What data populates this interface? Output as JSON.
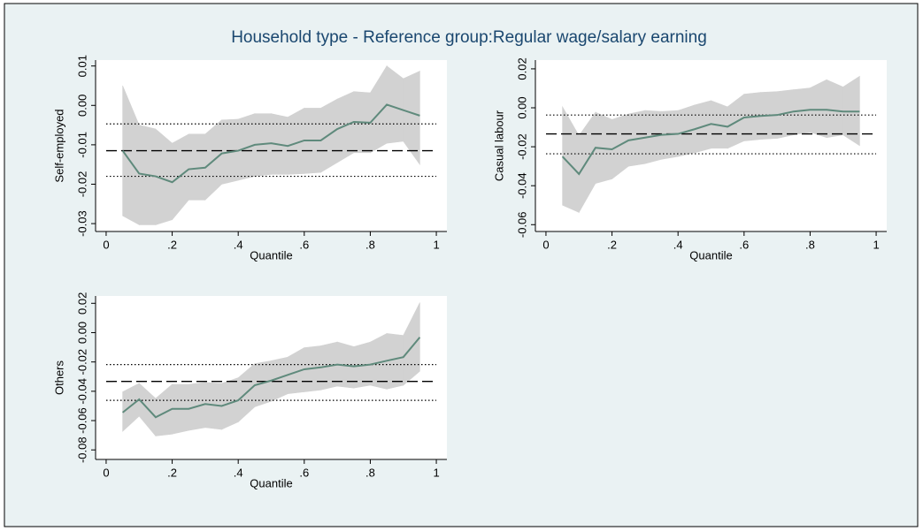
{
  "title": "Household type - Reference group:Regular wage/salary earning",
  "chart_data": [
    {
      "type": "line",
      "xlabel": "Quantile",
      "ylabel": "Self-employed",
      "x": [
        0.05,
        0.1,
        0.15,
        0.2,
        0.25,
        0.3,
        0.35,
        0.4,
        0.45,
        0.5,
        0.55,
        0.6,
        0.65,
        0.7,
        0.75,
        0.8,
        0.85,
        0.9,
        0.95
      ],
      "series": [
        {
          "color": "#5f8a7c",
          "values": [
            -0.0115,
            -0.0173,
            -0.018,
            -0.0195,
            -0.0162,
            -0.0158,
            -0.0122,
            -0.0115,
            -0.01,
            -0.0096,
            -0.0103,
            -0.0089,
            -0.0089,
            -0.006,
            -0.0042,
            -0.0044,
            0.0002,
            -0.0012,
            -0.0026
          ]
        }
      ],
      "band": {
        "color": "#d2d2d2",
        "upper": [
          0.005,
          -0.005,
          -0.006,
          -0.0096,
          -0.0073,
          -0.0073,
          -0.0037,
          -0.0035,
          -0.0021,
          -0.0021,
          -0.003,
          -0.0007,
          -0.0007,
          0.0016,
          0.0035,
          0.0032,
          0.01,
          0.0068,
          0.0087
        ],
        "lower": [
          -0.028,
          -0.0303,
          -0.0303,
          -0.029,
          -0.024,
          -0.024,
          -0.02,
          -0.019,
          -0.018,
          -0.0175,
          -0.0175,
          -0.0173,
          -0.017,
          -0.0145,
          -0.012,
          -0.012,
          -0.0096,
          -0.0091,
          -0.015
        ]
      },
      "ols": {
        "estimate": -0.0115,
        "ci": [
          -0.018,
          -0.0047
        ]
      },
      "xlim": [
        -0.032,
        1.032
      ],
      "ylim": [
        -0.032,
        0.0115
      ],
      "xticks": [
        0,
        {
          "value": 0.2,
          "label": ".2"
        },
        {
          "value": 0.4,
          "label": ".4"
        },
        {
          "value": 0.6,
          "label": ".6"
        },
        {
          "value": 0.8,
          "label": ".8"
        },
        1
      ],
      "yticks": [
        {
          "value": -0.03,
          "label": "-0.03"
        },
        {
          "value": -0.02,
          "label": "-0.02"
        },
        {
          "value": -0.01,
          "label": "-0.01"
        },
        {
          "value": 0,
          "label": "0.00"
        },
        {
          "value": 0.01,
          "label": "0.01"
        }
      ]
    },
    {
      "type": "line",
      "xlabel": "Quantile",
      "ylabel": "Casual labour",
      "x": [
        0.05,
        0.1,
        0.15,
        0.2,
        0.25,
        0.3,
        0.35,
        0.4,
        0.45,
        0.5,
        0.55,
        0.6,
        0.65,
        0.7,
        0.75,
        0.8,
        0.85,
        0.9,
        0.95
      ],
      "series": [
        {
          "color": "#5f8a7c",
          "values": [
            -0.025,
            -0.034,
            -0.0205,
            -0.0213,
            -0.0167,
            -0.0153,
            -0.0139,
            -0.0134,
            -0.011,
            -0.0083,
            -0.0097,
            -0.005,
            -0.0042,
            -0.0037,
            -0.0019,
            -0.001,
            -0.001,
            -0.0019,
            -0.0019
          ]
        }
      ],
      "band": {
        "color": "#d2d2d2",
        "upper": [
          0.0005,
          -0.0143,
          -0.0023,
          -0.006,
          -0.0032,
          -0.0014,
          -0.0019,
          -0.0014,
          0.0014,
          0.0037,
          0.0005,
          0.007,
          0.0079,
          0.0083,
          0.0093,
          0.0102,
          0.0144,
          0.0107,
          0.0162
        ],
        "lower": [
          -0.05,
          -0.0537,
          -0.0388,
          -0.0365,
          -0.03,
          -0.0287,
          -0.0264,
          -0.025,
          -0.0231,
          -0.0208,
          -0.0208,
          -0.017,
          -0.0162,
          -0.0157,
          -0.0139,
          -0.0125,
          -0.0153,
          -0.0139,
          -0.0194
        ]
      },
      "ols": {
        "estimate": -0.0134,
        "ci": [
          -0.0236,
          -0.0037
        ]
      },
      "xlim": [
        -0.032,
        1.032
      ],
      "ylim": [
        -0.0635,
        0.0245
      ],
      "xticks": [
        0,
        {
          "value": 0.2,
          "label": ".2"
        },
        {
          "value": 0.4,
          "label": ".4"
        },
        {
          "value": 0.6,
          "label": ".6"
        },
        {
          "value": 0.8,
          "label": ".8"
        },
        1
      ],
      "yticks": [
        {
          "value": -0.06,
          "label": "-0.06"
        },
        {
          "value": -0.04,
          "label": "-0.04"
        },
        {
          "value": -0.02,
          "label": "-0.02"
        },
        {
          "value": 0,
          "label": "0.00"
        },
        {
          "value": 0.02,
          "label": "0.02"
        }
      ]
    },
    {
      "type": "line",
      "xlabel": "Quantile",
      "ylabel": "Others",
      "x": [
        0.05,
        0.1,
        0.15,
        0.2,
        0.25,
        0.3,
        0.35,
        0.4,
        0.45,
        0.5,
        0.55,
        0.6,
        0.65,
        0.7,
        0.75,
        0.8,
        0.85,
        0.9,
        0.95
      ],
      "series": [
        {
          "color": "#5f8a7c",
          "values": [
            -0.0545,
            -0.0455,
            -0.0577,
            -0.052,
            -0.052,
            -0.0487,
            -0.05,
            -0.0462,
            -0.0359,
            -0.0327,
            -0.0288,
            -0.025,
            -0.0237,
            -0.0218,
            -0.023,
            -0.0218,
            -0.0192,
            -0.0167,
            -0.0032
          ]
        }
      ],
      "band": {
        "color": "#d2d2d2",
        "upper": [
          -0.0404,
          -0.0346,
          -0.0449,
          -0.0353,
          -0.0353,
          -0.034,
          -0.0346,
          -0.0308,
          -0.0212,
          -0.0192,
          -0.0167,
          -0.0103,
          -0.009,
          -0.0064,
          -0.0096,
          -0.0064,
          -0.0006,
          -0.0019,
          0.0205
        ],
        "lower": [
          -0.0673,
          -0.057,
          -0.0705,
          -0.0692,
          -0.0667,
          -0.0647,
          -0.066,
          -0.0609,
          -0.0506,
          -0.0468,
          -0.0417,
          -0.0404,
          -0.0391,
          -0.0365,
          -0.0378,
          -0.0359,
          -0.0385,
          -0.0359,
          -0.0263
        ]
      },
      "ols": {
        "estimate": -0.0333,
        "ci": [
          -0.0462,
          -0.0218
        ]
      },
      "xlim": [
        -0.032,
        1.032
      ],
      "ylim": [
        -0.0865,
        0.025
      ],
      "xticks": [
        0,
        {
          "value": 0.2,
          "label": ".2"
        },
        {
          "value": 0.4,
          "label": ".4"
        },
        {
          "value": 0.6,
          "label": ".6"
        },
        {
          "value": 0.8,
          "label": ".8"
        },
        1
      ],
      "yticks": [
        {
          "value": -0.08,
          "label": "-0.08"
        },
        {
          "value": -0.06,
          "label": "-0.06"
        },
        {
          "value": -0.04,
          "label": "-0.04"
        },
        {
          "value": -0.02,
          "label": "-0.02"
        },
        {
          "value": 0,
          "label": "0.00"
        },
        {
          "value": 0.02,
          "label": "0.02"
        }
      ]
    }
  ]
}
